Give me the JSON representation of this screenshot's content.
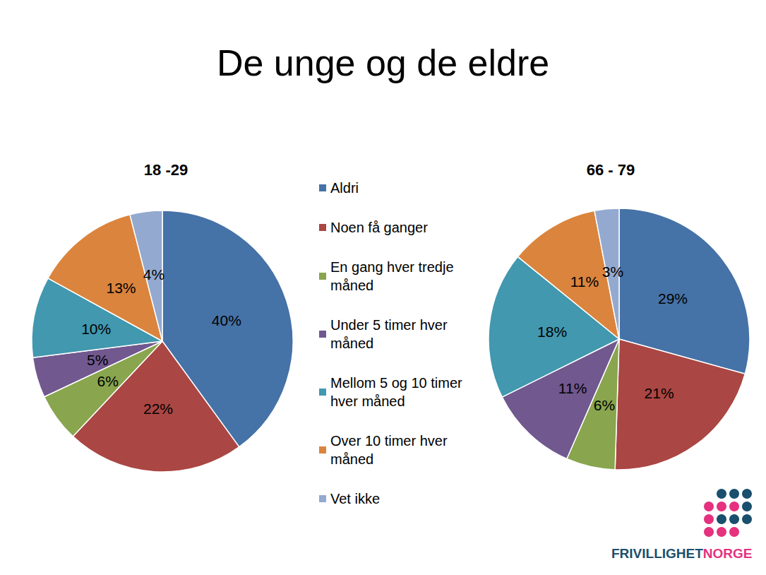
{
  "title": "De unge og de eldre",
  "logo": [
    "FRIVILLIGHET",
    "NORGE"
  ],
  "chart_data": [
    {
      "type": "pie",
      "title": "18 -29",
      "categories": [
        "Aldri",
        "Noen få ganger",
        "En gang hver tredje måned",
        "Under 5 timer hver måned",
        "Mellom 5 og 10 timer hver måned",
        "Over 10 timer hver måned",
        "Vet ikke"
      ],
      "values": [
        40,
        22,
        6,
        5,
        10,
        13,
        4
      ],
      "value_labels": [
        "40%",
        "22%",
        "6%",
        "5%",
        "10%",
        "13%",
        "4%"
      ],
      "colors": [
        "#4572A7",
        "#AA4643",
        "#89A54E",
        "#71588F",
        "#4198AF",
        "#DB843D",
        "#93A9CF"
      ],
      "data_labels": true,
      "legend": "center"
    },
    {
      "type": "pie",
      "title": "66 - 79",
      "categories": [
        "Aldri",
        "Noen få ganger",
        "En gang hver tredje måned",
        "Under 5 timer hver måned",
        "Mellom 5 og 10 timer hver måned",
        "Over 10 timer hver måned",
        "Vet ikke"
      ],
      "values": [
        29,
        21,
        6,
        11,
        18,
        11,
        3
      ],
      "value_labels": [
        "29%",
        "21%",
        "6%",
        "11%",
        "18%",
        "11%",
        "3%"
      ],
      "colors": [
        "#4572A7",
        "#AA4643",
        "#89A54E",
        "#71588F",
        "#4198AF",
        "#DB843D",
        "#93A9CF"
      ],
      "data_labels": true,
      "legend": "center"
    }
  ]
}
